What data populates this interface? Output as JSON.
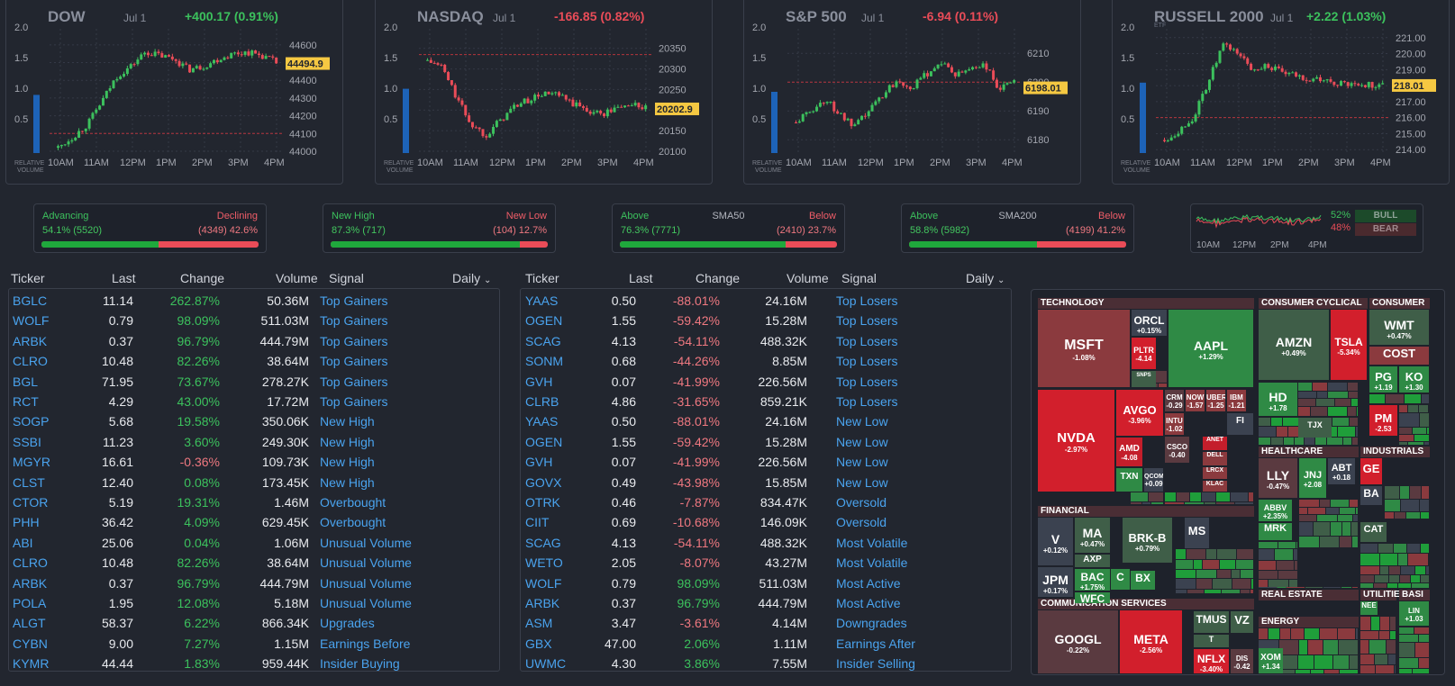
{
  "indices": [
    {
      "name": "DOW",
      "date": "Jul 1",
      "change": "+400.17 (0.91%)",
      "dir": "up",
      "price": "44494.9",
      "yticks": [
        "44600",
        "44500",
        "44400",
        "44300",
        "44200",
        "44100",
        "44000"
      ],
      "xticks": [
        "10AM",
        "11AM",
        "12PM",
        "1PM",
        "2PM",
        "3PM",
        "4PM"
      ],
      "vol_ticks": [
        "2.0",
        "1.5",
        "1.0",
        "0.5"
      ],
      "vol_label": "RELATIVE VOLUME",
      "rel_volume": 0.95
    },
    {
      "name": "NASDAQ",
      "date": "Jul 1",
      "change": "-166.85 (0.82%)",
      "dir": "down",
      "price": "20202.9",
      "yticks": [
        "20350",
        "20300",
        "20250",
        "20200",
        "20150",
        "20100"
      ],
      "xticks": [
        "10AM",
        "11AM",
        "12PM",
        "1PM",
        "2PM",
        "3PM",
        "4PM"
      ],
      "vol_ticks": [
        "2.0",
        "1.5",
        "1.0",
        "0.5"
      ],
      "vol_label": "RELATIVE VOLUME",
      "rel_volume": 1.05
    },
    {
      "name": "S&P 500",
      "date": "Jul 1",
      "change": "-6.94 (0.11%)",
      "dir": "down",
      "price": "6198.01",
      "yticks": [
        "6210",
        "6200",
        "6190",
        "6180"
      ],
      "xticks": [
        "10AM",
        "11AM",
        "12PM",
        "1PM",
        "2PM",
        "3PM",
        "4PM"
      ],
      "vol_ticks": [
        "2.0",
        "1.5",
        "1.0",
        "0.5"
      ],
      "vol_label": "RELATIVE VOLUME",
      "rel_volume": 1.0
    },
    {
      "name": "RUSSELL 2000",
      "etf": "ETF",
      "date": "Jul 1",
      "change": "+2.22 (1.03%)",
      "dir": "up",
      "price": "218.01",
      "yticks": [
        "221.00",
        "220.00",
        "219.00",
        "218.00",
        "217.00",
        "216.00",
        "215.00",
        "214.00"
      ],
      "xticks": [
        "10AM",
        "11AM",
        "12PM",
        "1PM",
        "2PM",
        "3PM",
        "4PM"
      ],
      "vol_ticks": [
        "2.0",
        "1.5",
        "1.0",
        "0.5"
      ],
      "vol_label": "RELATIVE VOLUME",
      "rel_volume": 1.15
    }
  ],
  "breadth": [
    {
      "left_label": "Advancing",
      "mid_label": "",
      "right_label": "Declining",
      "left_value": "54.1% (5520)",
      "right_value": "(4349) 42.6%",
      "left_pct": 54.1
    },
    {
      "left_label": "New High",
      "mid_label": "",
      "right_label": "New Low",
      "left_value": "87.3% (717)",
      "right_value": "(104) 12.7%",
      "left_pct": 87.3
    },
    {
      "left_label": "Above",
      "mid_label": "SMA50",
      "right_label": "Below",
      "left_value": "76.3% (7771)",
      "right_value": "(2410) 23.7%",
      "left_pct": 76.3
    },
    {
      "left_label": "Above",
      "mid_label": "SMA200",
      "right_label": "Below",
      "left_value": "58.8% (5982)",
      "right_value": "(4199) 41.2%",
      "left_pct": 58.8
    }
  ],
  "bullbear": {
    "bull_pct": "52%",
    "bear_pct": "48%",
    "bull_label": "BULL",
    "bear_label": "BEAR",
    "xticks": [
      "10AM",
      "12PM",
      "2PM",
      "4PM"
    ]
  },
  "table_headers": {
    "ticker": "Ticker",
    "last": "Last",
    "change": "Change",
    "volume": "Volume",
    "signal": "Signal",
    "period": "Daily"
  },
  "left_table": [
    {
      "ticker": "BGLC",
      "last": "11.14",
      "change": "262.87%",
      "dir": "up",
      "volume": "50.36M",
      "signal": "Top Gainers"
    },
    {
      "ticker": "WOLF",
      "last": "0.79",
      "change": "98.09%",
      "dir": "up",
      "volume": "511.03M",
      "signal": "Top Gainers"
    },
    {
      "ticker": "ARBK",
      "last": "0.37",
      "change": "96.79%",
      "dir": "up",
      "volume": "444.79M",
      "signal": "Top Gainers"
    },
    {
      "ticker": "CLRO",
      "last": "10.48",
      "change": "82.26%",
      "dir": "up",
      "volume": "38.64M",
      "signal": "Top Gainers"
    },
    {
      "ticker": "BGL",
      "last": "71.95",
      "change": "73.67%",
      "dir": "up",
      "volume": "278.27K",
      "signal": "Top Gainers"
    },
    {
      "ticker": "RCT",
      "last": "4.29",
      "change": "43.00%",
      "dir": "up",
      "volume": "17.72M",
      "signal": "Top Gainers"
    },
    {
      "ticker": "SOGP",
      "last": "5.68",
      "change": "19.58%",
      "dir": "up",
      "volume": "350.06K",
      "signal": "New High"
    },
    {
      "ticker": "SSBI",
      "last": "11.23",
      "change": "3.60%",
      "dir": "up",
      "volume": "249.30K",
      "signal": "New High"
    },
    {
      "ticker": "MGYR",
      "last": "16.61",
      "change": "-0.36%",
      "dir": "down",
      "volume": "109.73K",
      "signal": "New High"
    },
    {
      "ticker": "CLST",
      "last": "12.40",
      "change": "0.08%",
      "dir": "up",
      "volume": "173.45K",
      "signal": "New High"
    },
    {
      "ticker": "CTOR",
      "last": "5.19",
      "change": "19.31%",
      "dir": "up",
      "volume": "1.46M",
      "signal": "Overbought"
    },
    {
      "ticker": "PHH",
      "last": "36.42",
      "change": "4.09%",
      "dir": "up",
      "volume": "629.45K",
      "signal": "Overbought"
    },
    {
      "ticker": "ABI",
      "last": "25.06",
      "change": "0.04%",
      "dir": "up",
      "volume": "1.06M",
      "signal": "Unusual Volume"
    },
    {
      "ticker": "CLRO",
      "last": "10.48",
      "change": "82.26%",
      "dir": "up",
      "volume": "38.64M",
      "signal": "Unusual Volume"
    },
    {
      "ticker": "ARBK",
      "last": "0.37",
      "change": "96.79%",
      "dir": "up",
      "volume": "444.79M",
      "signal": "Unusual Volume"
    },
    {
      "ticker": "POLA",
      "last": "1.95",
      "change": "12.08%",
      "dir": "up",
      "volume": "5.18M",
      "signal": "Unusual Volume"
    },
    {
      "ticker": "ALGT",
      "last": "58.37",
      "change": "6.22%",
      "dir": "up",
      "volume": "866.34K",
      "signal": "Upgrades"
    },
    {
      "ticker": "CYBN",
      "last": "9.00",
      "change": "7.27%",
      "dir": "up",
      "volume": "1.15M",
      "signal": "Earnings Before"
    },
    {
      "ticker": "KYMR",
      "last": "44.44",
      "change": "1.83%",
      "dir": "up",
      "volume": "959.44K",
      "signal": "Insider Buying"
    }
  ],
  "right_table": [
    {
      "ticker": "YAAS",
      "last": "0.50",
      "change": "-88.01%",
      "dir": "down",
      "volume": "24.16M",
      "signal": "Top Losers"
    },
    {
      "ticker": "OGEN",
      "last": "1.55",
      "change": "-59.42%",
      "dir": "down",
      "volume": "15.28M",
      "signal": "Top Losers"
    },
    {
      "ticker": "SCAG",
      "last": "4.13",
      "change": "-54.11%",
      "dir": "down",
      "volume": "488.32K",
      "signal": "Top Losers"
    },
    {
      "ticker": "SONM",
      "last": "0.68",
      "change": "-44.26%",
      "dir": "down",
      "volume": "8.85M",
      "signal": "Top Losers"
    },
    {
      "ticker": "GVH",
      "last": "0.07",
      "change": "-41.99%",
      "dir": "down",
      "volume": "226.56M",
      "signal": "Top Losers"
    },
    {
      "ticker": "CLRB",
      "last": "4.86",
      "change": "-31.65%",
      "dir": "down",
      "volume": "859.21K",
      "signal": "Top Losers"
    },
    {
      "ticker": "YAAS",
      "last": "0.50",
      "change": "-88.01%",
      "dir": "down",
      "volume": "24.16M",
      "signal": "New Low"
    },
    {
      "ticker": "OGEN",
      "last": "1.55",
      "change": "-59.42%",
      "dir": "down",
      "volume": "15.28M",
      "signal": "New Low"
    },
    {
      "ticker": "GVH",
      "last": "0.07",
      "change": "-41.99%",
      "dir": "down",
      "volume": "226.56M",
      "signal": "New Low"
    },
    {
      "ticker": "GOVX",
      "last": "0.49",
      "change": "-43.98%",
      "dir": "down",
      "volume": "15.85M",
      "signal": "New Low"
    },
    {
      "ticker": "OTRK",
      "last": "0.46",
      "change": "-7.87%",
      "dir": "down",
      "volume": "834.47K",
      "signal": "Oversold"
    },
    {
      "ticker": "CIIT",
      "last": "0.69",
      "change": "-10.68%",
      "dir": "down",
      "volume": "146.09K",
      "signal": "Oversold"
    },
    {
      "ticker": "SCAG",
      "last": "4.13",
      "change": "-54.11%",
      "dir": "down",
      "volume": "488.32K",
      "signal": "Most Volatile"
    },
    {
      "ticker": "WETO",
      "last": "2.05",
      "change": "-8.07%",
      "dir": "down",
      "volume": "43.27M",
      "signal": "Most Volatile"
    },
    {
      "ticker": "WOLF",
      "last": "0.79",
      "change": "98.09%",
      "dir": "up",
      "volume": "511.03M",
      "signal": "Most Active"
    },
    {
      "ticker": "ARBK",
      "last": "0.37",
      "change": "96.79%",
      "dir": "up",
      "volume": "444.79M",
      "signal": "Most Active"
    },
    {
      "ticker": "ASM",
      "last": "3.47",
      "change": "-3.61%",
      "dir": "down",
      "volume": "4.14M",
      "signal": "Downgrades"
    },
    {
      "ticker": "GBX",
      "last": "47.00",
      "change": "2.06%",
      "dir": "up",
      "volume": "1.11M",
      "signal": "Earnings After"
    },
    {
      "ticker": "UWMC",
      "last": "4.30",
      "change": "3.86%",
      "dir": "up",
      "volume": "7.55M",
      "signal": "Insider Selling"
    }
  ],
  "heatmap": {
    "sectors": [
      "TECHNOLOGY",
      "CONSUMER CYCLICAL",
      "CONSUMER",
      "FINANCIAL",
      "HEALTHCARE",
      "INDUSTRIALS",
      "COMMUNICATION SERVICES",
      "REAL ESTATE",
      "UTILITIE",
      "BASI",
      "ENERGY"
    ],
    "tiles": [
      {
        "s": "MSFT",
        "p": "-1.08%",
        "c": "#8b3a3e"
      },
      {
        "s": "ORCL",
        "p": "+0.15%",
        "c": "#3b4250"
      },
      {
        "s": "PLTR",
        "p": "-4.14",
        "c": "#d21f2c"
      },
      {
        "s": "SNPS",
        "p": "",
        "c": "#3f5e48"
      },
      {
        "s": "AAPL",
        "p": "+1.29%",
        "c": "#2f8a45"
      },
      {
        "s": "NVDA",
        "p": "-2.97%",
        "c": "#d21f2c"
      },
      {
        "s": "AVGO",
        "p": "-3.96%",
        "c": "#d21f2c"
      },
      {
        "s": "AMD",
        "p": "-4.08",
        "c": "#c41e2b"
      },
      {
        "s": "TXN",
        "p": "",
        "c": "#2f8a45"
      },
      {
        "s": "QCOM",
        "p": "+0.09",
        "c": "#3b4250"
      },
      {
        "s": "CRM",
        "p": "-0.29",
        "c": "#5a3a40"
      },
      {
        "s": "NOW",
        "p": "-1.57",
        "c": "#8b3a3e"
      },
      {
        "s": "UBER",
        "p": "-1.25",
        "c": "#8b3a3e"
      },
      {
        "s": "IBM",
        "p": "-1.21",
        "c": "#8b3a3e"
      },
      {
        "s": "INTU",
        "p": "-1.02",
        "c": "#8b3a3e"
      },
      {
        "s": "FI",
        "p": "",
        "c": "#3b4250"
      },
      {
        "s": "CSCO",
        "p": "-0.40",
        "c": "#5a3a40"
      },
      {
        "s": "ANET",
        "p": "",
        "c": "#c41e2b"
      },
      {
        "s": "DELL",
        "p": "",
        "c": "#8b3a3e"
      },
      {
        "s": "LRCX",
        "p": "",
        "c": "#8b3a3e"
      },
      {
        "s": "KLAC",
        "p": "",
        "c": "#8b3a3e"
      },
      {
        "s": "AMZN",
        "p": "+0.49%",
        "c": "#3f5e48"
      },
      {
        "s": "TSLA",
        "p": "-5.34%",
        "c": "#d21f2c"
      },
      {
        "s": "WMT",
        "p": "+0.47%",
        "c": "#3f5e48"
      },
      {
        "s": "COST",
        "p": "",
        "c": "#8b3a3e"
      },
      {
        "s": "PG",
        "p": "+1.19",
        "c": "#2f8a45"
      },
      {
        "s": "KO",
        "p": "+1.30",
        "c": "#2f8a45"
      },
      {
        "s": "PM",
        "p": "-2.53",
        "c": "#d21f2c"
      },
      {
        "s": "HD",
        "p": "+1.78",
        "c": "#2f8a45"
      },
      {
        "s": "TJX",
        "p": "",
        "c": "#3f5e48"
      },
      {
        "s": "LLY",
        "p": "-0.47%",
        "c": "#5a3a40"
      },
      {
        "s": "JNJ",
        "p": "+2.08",
        "c": "#2f8a45"
      },
      {
        "s": "ABT",
        "p": "+0.18",
        "c": "#3b4250"
      },
      {
        "s": "ABBV",
        "p": "+2.35%",
        "c": "#2f8a45"
      },
      {
        "s": "MRK",
        "p": "",
        "c": "#2f8a45"
      },
      {
        "s": "GE",
        "p": "",
        "c": "#d21f2c"
      },
      {
        "s": "BA",
        "p": "",
        "c": "#3b4250"
      },
      {
        "s": "CAT",
        "p": "",
        "c": "#3f5e48"
      },
      {
        "s": "V",
        "p": "+0.12%",
        "c": "#3b4250"
      },
      {
        "s": "MA",
        "p": "+0.47%",
        "c": "#3f5e48"
      },
      {
        "s": "AXP",
        "p": "",
        "c": "#3f5e48"
      },
      {
        "s": "BRK-B",
        "p": "+0.79%",
        "c": "#3f5e48"
      },
      {
        "s": "MS",
        "p": "",
        "c": "#3b4250"
      },
      {
        "s": "JPM",
        "p": "+0.17%",
        "c": "#3b4250"
      },
      {
        "s": "BAC",
        "p": "+1.75%",
        "c": "#2f8a45"
      },
      {
        "s": "WFC",
        "p": "",
        "c": "#2f8a45"
      },
      {
        "s": "C",
        "p": "",
        "c": "#2f8a45"
      },
      {
        "s": "BX",
        "p": "",
        "c": "#2f8a45"
      },
      {
        "s": "GOOGL",
        "p": "-0.22%",
        "c": "#5a3a40"
      },
      {
        "s": "META",
        "p": "-2.56%",
        "c": "#d21f2c"
      },
      {
        "s": "TMUS",
        "p": "",
        "c": "#3f5e48"
      },
      {
        "s": "VZ",
        "p": "",
        "c": "#3f5e48"
      },
      {
        "s": "T",
        "p": "",
        "c": "#3f5e48"
      },
      {
        "s": "NFLX",
        "p": "-3.40%",
        "c": "#d21f2c"
      },
      {
        "s": "DIS",
        "p": "-0.42",
        "c": "#5a3a40"
      },
      {
        "s": "XOM",
        "p": "+1.34",
        "c": "#2f8a45"
      },
      {
        "s": "NEE",
        "p": "",
        "c": "#2f8a45"
      },
      {
        "s": "LIN",
        "p": "+1.03",
        "c": "#2f8a45"
      }
    ]
  }
}
